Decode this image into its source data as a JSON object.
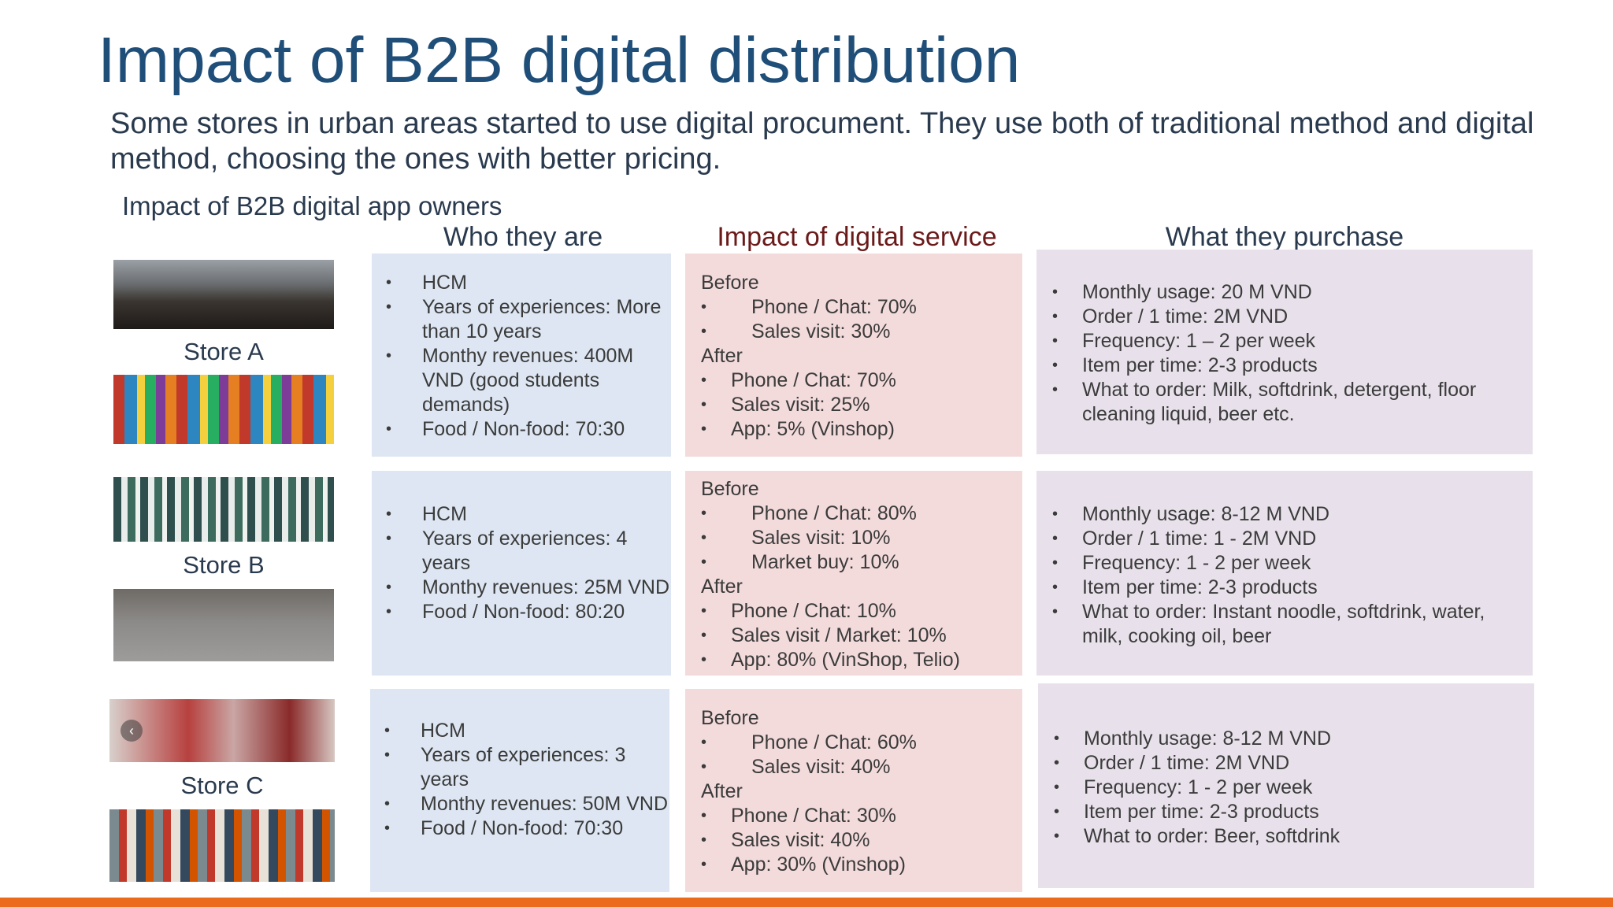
{
  "title": "Impact of B2B digital distribution",
  "subtitle": "Some stores in urban areas started to use digital procument. They use both of traditional method and digital method, choosing the ones with better pricing.",
  "section_label": "Impact of B2B digital app owners",
  "headers": {
    "who": "Who they are",
    "impact": "Impact of digital service",
    "what": "What they purchase"
  },
  "stores": [
    {
      "name": "Store A",
      "who": [
        "HCM",
        "Years of experiences: More than 10 years",
        "Monthy revenues: 400M VND (good students demands)",
        "Food / Non-food: 70:30"
      ],
      "before_label": "Before",
      "before": [
        "Phone / Chat: 70%",
        "Sales visit: 30%"
      ],
      "after_label": "After",
      "after": [
        "Phone / Chat: 70%",
        "Sales visit: 25%",
        "App:  5% (Vinshop)"
      ],
      "what": [
        "Monthly usage: 20 M VND",
        "Order / 1 time: 2M VND",
        "Frequency: 1 – 2 per week",
        "Item per time: 2-3 products",
        "What to order: Milk, softdrink, detergent, floor cleaning liquid, beer etc."
      ]
    },
    {
      "name": "Store B",
      "who": [
        "HCM",
        "Years of experiences: 4 years",
        "Monthy revenues: 25M VND",
        "Food / Non-food: 80:20"
      ],
      "before_label": "Before",
      "before": [
        "Phone / Chat: 80%",
        "Sales visit: 10%",
        "Market buy: 10%"
      ],
      "after_label": "After",
      "after": [
        "Phone / Chat: 10%",
        "Sales visit / Market: 10%",
        "App:  80% (VinShop, Telio)"
      ],
      "what": [
        "Monthly usage: 8-12 M VND",
        "Order / 1 time: 1 - 2M VND",
        "Frequency: 1 - 2  per week",
        "Item per time: 2-3 products",
        "What to order: Instant noodle, softdrink, water, milk, cooking oil, beer"
      ]
    },
    {
      "name": "Store C",
      "who": [
        "HCM",
        "Years of experiences: 3 years",
        "Monthy revenues: 50M VND",
        "Food / Non-food: 70:30"
      ],
      "before_label": "Before",
      "before": [
        "Phone / Chat: 60%",
        "Sales visit: 40%"
      ],
      "after_label": "After",
      "after": [
        "Phone / Chat: 30%",
        "Sales visit: 40%",
        "App:  30% (Vinshop)"
      ],
      "what": [
        "Monthly usage: 8-12 M VND",
        "Order / 1 time: 2M VND",
        "Frequency: 1 - 2  per week",
        "Item per time: 2-3 products",
        "What to order: Beer, softdrink"
      ]
    }
  ],
  "colors": {
    "title": "#1f4e79",
    "blue_box": "#dde6f2",
    "pink_box": "#f3dadb",
    "purple_box": "#e8e1eb",
    "accent_bar": "#ec6a1c"
  }
}
